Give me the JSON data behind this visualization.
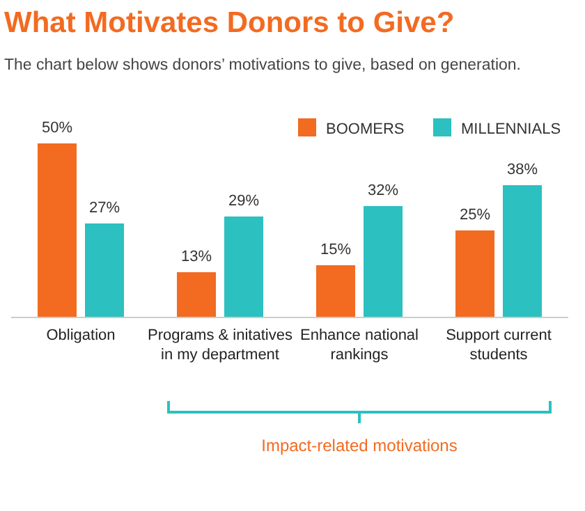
{
  "chart_data": {
    "type": "bar",
    "title": "What Motivates Donors to Give?",
    "subtitle": "The chart below shows donors’ motivations to give, based on generation.",
    "categories": [
      "Obligation",
      "Programs & initatives in my department",
      "Enhance national rankings",
      "Support current students"
    ],
    "series": [
      {
        "name": "BOOMERS",
        "color": "#f26b21",
        "values": [
          50,
          13,
          15,
          25
        ],
        "value_labels": [
          "50%",
          "13%",
          "15%",
          "25%"
        ]
      },
      {
        "name": "MILLENNIALS",
        "color": "#2cc0c0",
        "values": [
          27,
          29,
          32,
          38
        ],
        "value_labels": [
          "27%",
          "29%",
          "32%",
          "38%"
        ]
      }
    ],
    "legend": "top right",
    "grid": false,
    "annotations": [
      "Impact-related motivations"
    ]
  }
}
